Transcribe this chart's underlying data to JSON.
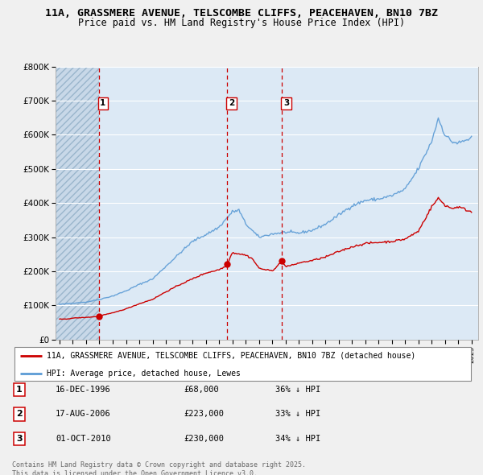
{
  "title_line1": "11A, GRASSMERE AVENUE, TELSCOMBE CLIFFS, PEACEHAVEN, BN10 7BZ",
  "title_line2": "Price paid vs. HM Land Registry's House Price Index (HPI)",
  "hpi_label": "HPI: Average price, detached house, Lewes",
  "price_label": "11A, GRASSMERE AVENUE, TELSCOMBE CLIFFS, PEACEHAVEN, BN10 7BZ (detached house)",
  "transactions": [
    {
      "num": 1,
      "date": "16-DEC-1996",
      "price": 68000,
      "pct": "36% ↓ HPI",
      "year": 1996.96
    },
    {
      "num": 2,
      "date": "17-AUG-2006",
      "price": 223000,
      "pct": "33% ↓ HPI",
      "year": 2006.63
    },
    {
      "num": 3,
      "date": "01-OCT-2010",
      "price": 230000,
      "pct": "34% ↓ HPI",
      "year": 2010.75
    }
  ],
  "copyright": "Contains HM Land Registry data © Crown copyright and database right 2025.\nThis data is licensed under the Open Government Licence v3.0.",
  "background_color": "#f0f0f0",
  "plot_bg": "#dce9f5",
  "hpi_color": "#5b9bd5",
  "price_color": "#cc0000",
  "grid_color": "#ffffff",
  "ylim": [
    0,
    800000
  ],
  "xlim_start": 1993.7,
  "xlim_end": 2025.5,
  "hatch_color": "#c8d8e8"
}
